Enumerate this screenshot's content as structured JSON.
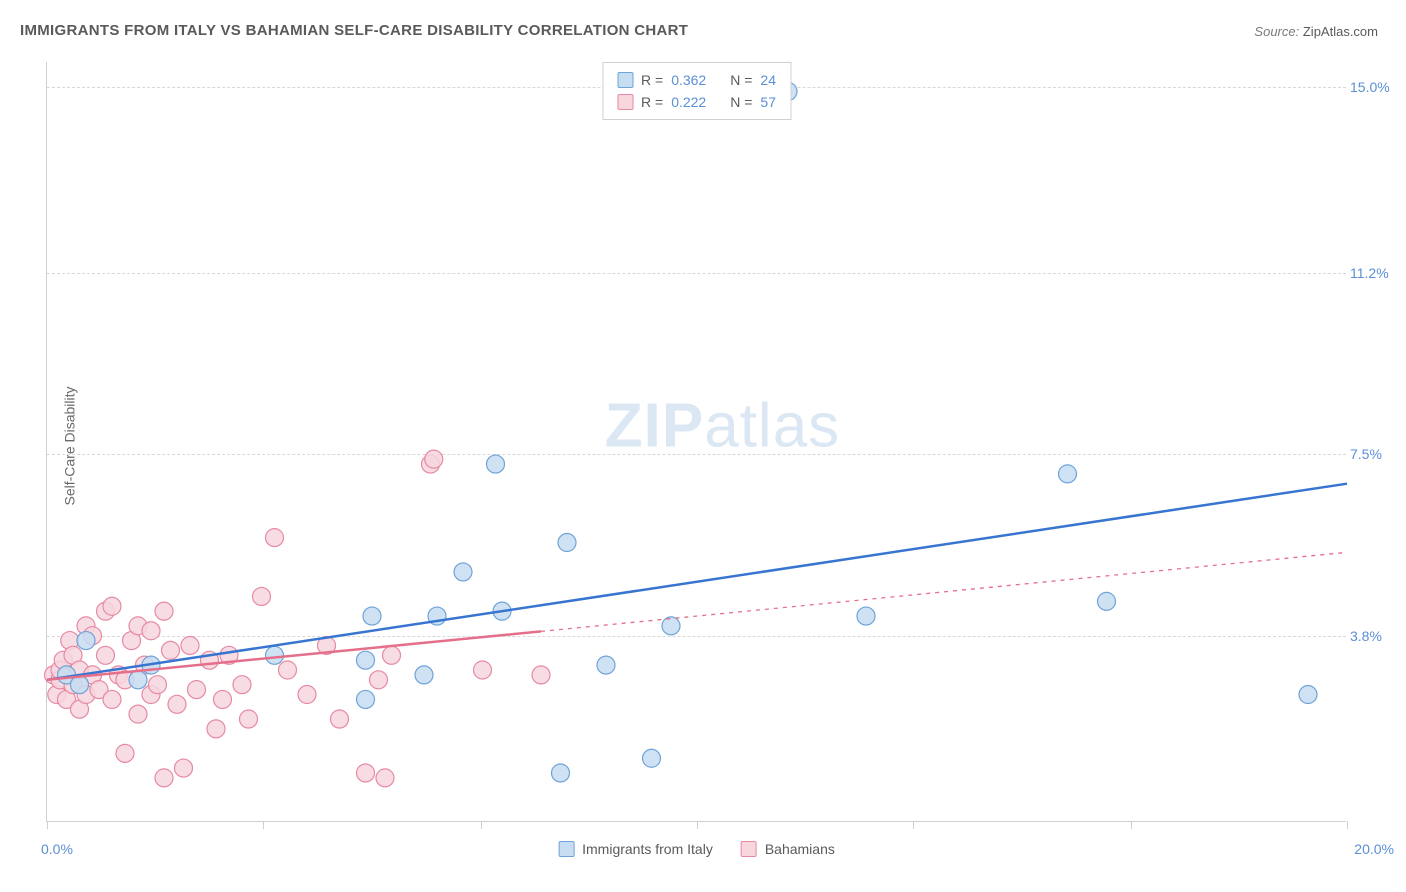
{
  "chart": {
    "type": "scatter",
    "title": "IMMIGRANTS FROM ITALY VS BAHAMIAN SELF-CARE DISABILITY CORRELATION CHART",
    "source_label": "Source:",
    "source_value": "ZipAtlas.com",
    "ylabel": "Self-Care Disability",
    "xlim": [
      0,
      20
    ],
    "ylim": [
      0,
      15.5
    ],
    "y_gridlines": [
      3.8,
      7.5,
      11.2,
      15.0
    ],
    "y_tick_labels": [
      "3.8%",
      "7.5%",
      "11.2%",
      "15.0%"
    ],
    "x_ticks": [
      0,
      3.33,
      6.67,
      10,
      13.33,
      16.67,
      20
    ],
    "x_left_label": "0.0%",
    "x_right_label": "20.0%",
    "background_color": "#ffffff",
    "grid_color": "#d8d8d8",
    "axis_color": "#cfcfcf",
    "tick_label_color": "#5b8fd6",
    "watermark_text_bold": "ZIP",
    "watermark_text_light": "atlas",
    "watermark_color": "#dce7f4",
    "series": [
      {
        "name": "Immigrants from Italy",
        "marker_fill": "#c6ddf2",
        "marker_stroke": "#6fa3d8",
        "marker_radius": 9,
        "marker_opacity": 0.85,
        "line_color": "#3875d1",
        "line_width": 2.5,
        "line_dash": "none",
        "trend": {
          "x1": 0.0,
          "y1": 2.9,
          "x2": 20.0,
          "y2": 6.9
        },
        "R": 0.362,
        "N": 24,
        "points": [
          [
            0.3,
            3.0
          ],
          [
            0.5,
            2.8
          ],
          [
            0.6,
            3.7
          ],
          [
            1.4,
            2.9
          ],
          [
            1.6,
            3.2
          ],
          [
            3.5,
            3.4
          ],
          [
            4.9,
            2.5
          ],
          [
            4.9,
            3.3
          ],
          [
            5.0,
            4.2
          ],
          [
            5.8,
            3.0
          ],
          [
            6.0,
            4.2
          ],
          [
            6.4,
            5.1
          ],
          [
            6.9,
            7.3
          ],
          [
            7.0,
            4.3
          ],
          [
            7.9,
            1.0
          ],
          [
            8.0,
            5.7
          ],
          [
            8.6,
            3.2
          ],
          [
            9.3,
            1.3
          ],
          [
            9.6,
            4.0
          ],
          [
            11.4,
            14.9
          ],
          [
            12.6,
            4.2
          ],
          [
            15.7,
            7.1
          ],
          [
            16.3,
            4.5
          ],
          [
            19.4,
            2.6
          ]
        ]
      },
      {
        "name": "Bahamians",
        "marker_fill": "#f7d6de",
        "marker_stroke": "#e68aa2",
        "marker_radius": 9,
        "marker_opacity": 0.85,
        "line_color": "#e56f8b",
        "line_width": 2.5,
        "line_dash": "4,5",
        "trend_solid_until_x": 7.6,
        "trend": {
          "x1": 0.0,
          "y1": 2.9,
          "x2": 20.0,
          "y2": 5.5
        },
        "R": 0.222,
        "N": 57,
        "points": [
          [
            0.1,
            3.0
          ],
          [
            0.15,
            2.6
          ],
          [
            0.2,
            2.9
          ],
          [
            0.2,
            3.1
          ],
          [
            0.25,
            3.3
          ],
          [
            0.3,
            2.5
          ],
          [
            0.35,
            3.7
          ],
          [
            0.4,
            2.8
          ],
          [
            0.4,
            3.4
          ],
          [
            0.5,
            2.3
          ],
          [
            0.5,
            3.1
          ],
          [
            0.6,
            2.6
          ],
          [
            0.6,
            4.0
          ],
          [
            0.7,
            3.0
          ],
          [
            0.7,
            3.8
          ],
          [
            0.8,
            2.7
          ],
          [
            0.9,
            4.3
          ],
          [
            0.9,
            3.4
          ],
          [
            1.0,
            2.5
          ],
          [
            1.0,
            4.4
          ],
          [
            1.1,
            3.0
          ],
          [
            1.2,
            1.4
          ],
          [
            1.2,
            2.9
          ],
          [
            1.3,
            3.7
          ],
          [
            1.4,
            2.2
          ],
          [
            1.4,
            4.0
          ],
          [
            1.5,
            3.2
          ],
          [
            1.6,
            2.6
          ],
          [
            1.6,
            3.9
          ],
          [
            1.7,
            2.8
          ],
          [
            1.8,
            4.3
          ],
          [
            1.8,
            0.9
          ],
          [
            1.9,
            3.5
          ],
          [
            2.0,
            2.4
          ],
          [
            2.1,
            1.1
          ],
          [
            2.2,
            3.6
          ],
          [
            2.3,
            2.7
          ],
          [
            2.5,
            3.3
          ],
          [
            2.6,
            1.9
          ],
          [
            2.7,
            2.5
          ],
          [
            2.8,
            3.4
          ],
          [
            3.0,
            2.8
          ],
          [
            3.1,
            2.1
          ],
          [
            3.3,
            4.6
          ],
          [
            3.5,
            5.8
          ],
          [
            3.7,
            3.1
          ],
          [
            4.0,
            2.6
          ],
          [
            4.3,
            3.6
          ],
          [
            4.5,
            2.1
          ],
          [
            4.9,
            1.0
          ],
          [
            5.1,
            2.9
          ],
          [
            5.2,
            0.9
          ],
          [
            5.3,
            3.4
          ],
          [
            5.9,
            7.3
          ],
          [
            5.95,
            7.4
          ],
          [
            6.7,
            3.1
          ],
          [
            7.6,
            3.0
          ]
        ]
      }
    ],
    "legend_top": {
      "r_label": "R =",
      "n_label": "N ="
    },
    "legend_bottom": {
      "items": [
        "Immigrants from Italy",
        "Bahamians"
      ]
    }
  }
}
